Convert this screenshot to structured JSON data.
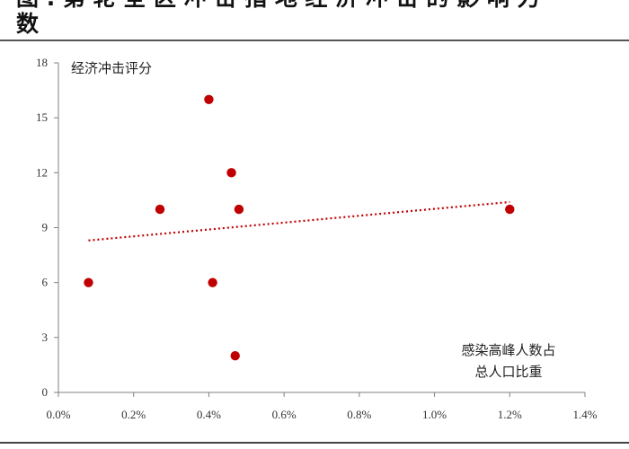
{
  "title": {
    "line1": "图 . 第 轮 全 区 冲 击 指 地 经 济 冲 击 的 影 响 力",
    "line2": "数"
  },
  "chart_data": {
    "type": "scatter",
    "ylabel": "经济冲击评分",
    "xlabel_lines": [
      "感染高峰人数占",
      "总人口比重"
    ],
    "xlim": [
      0,
      1.4
    ],
    "ylim": [
      0,
      18
    ],
    "x_ticks": [
      "0.0%",
      "0.2%",
      "0.4%",
      "0.6%",
      "0.8%",
      "1.0%",
      "1.2%",
      "1.4%"
    ],
    "y_ticks": [
      "0",
      "3",
      "6",
      "9",
      "12",
      "15",
      "18"
    ],
    "x_tick_values": [
      0,
      0.2,
      0.4,
      0.6,
      0.8,
      1.0,
      1.2,
      1.4
    ],
    "y_tick_values": [
      0,
      3,
      6,
      9,
      12,
      15,
      18
    ],
    "points": [
      {
        "x": 0.08,
        "y": 6
      },
      {
        "x": 0.27,
        "y": 10
      },
      {
        "x": 0.4,
        "y": 16
      },
      {
        "x": 0.41,
        "y": 6
      },
      {
        "x": 0.46,
        "y": 12
      },
      {
        "x": 0.47,
        "y": 2
      },
      {
        "x": 0.48,
        "y": 10
      },
      {
        "x": 1.2,
        "y": 10
      }
    ],
    "trendline": {
      "style": "dotted",
      "x": [
        0.08,
        1.2
      ],
      "y": [
        8.3,
        10.4
      ]
    },
    "colors": {
      "points": "#c00000",
      "trend": "#c00000",
      "axis": "#808080"
    },
    "grid": false,
    "legend": "none"
  }
}
